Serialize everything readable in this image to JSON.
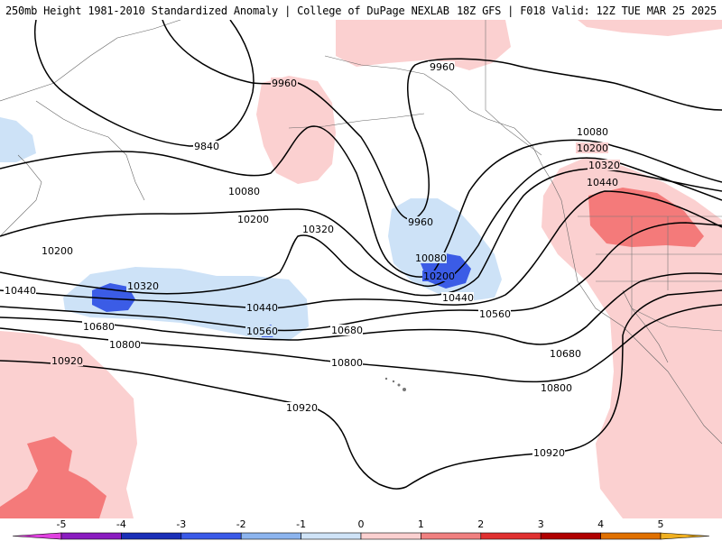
{
  "header": {
    "title": "250mb Height 1981-2010 Standardized Anomaly | College of DuPage NEXLAB",
    "run_info": "18Z GFS | F018 Valid: 12Z TUE MAR 25 2025"
  },
  "contours": {
    "c9840": "9840",
    "c9960a": "9960",
    "c9960b": "9960",
    "c9960c": "9960",
    "c10080a": "10080",
    "c10080b": "10080",
    "c10080c": "10080",
    "c10200a": "10200",
    "c10200b": "10200",
    "c10200c": "10200",
    "c10200d": "10200",
    "c10320a": "10320",
    "c10320b": "10320",
    "c10320c": "10320",
    "c10440a": "10440",
    "c10440b": "10440",
    "c10440c": "10440",
    "c10440d": "10440",
    "c10560a": "10560",
    "c10560b": "10560",
    "c10680a": "10680",
    "c10680b": "10680",
    "c10680c": "10680",
    "c10800a": "10800",
    "c10800b": "10800",
    "c10800c": "10800",
    "c10920a": "10920",
    "c10920b": "10920",
    "c10920c": "10920"
  },
  "colorbar": {
    "ticks": [
      "-5",
      "-4",
      "-3",
      "-2",
      "-1",
      "0",
      "1",
      "2",
      "3",
      "4",
      "5"
    ],
    "colors": [
      "#e040e0",
      "#8a1cc0",
      "#1a2fb8",
      "#3a5ae8",
      "#8cb4ee",
      "#cfe3f7",
      "#ffffff",
      "#fbd0d0",
      "#f08080",
      "#e03030",
      "#b00000",
      "#e07000",
      "#f0b020"
    ]
  },
  "shading": {
    "pos1": "#fbd0d0",
    "pos2": "#f47a7a",
    "neg1": "#cde2f7",
    "neg2": "#3b5ce6"
  }
}
